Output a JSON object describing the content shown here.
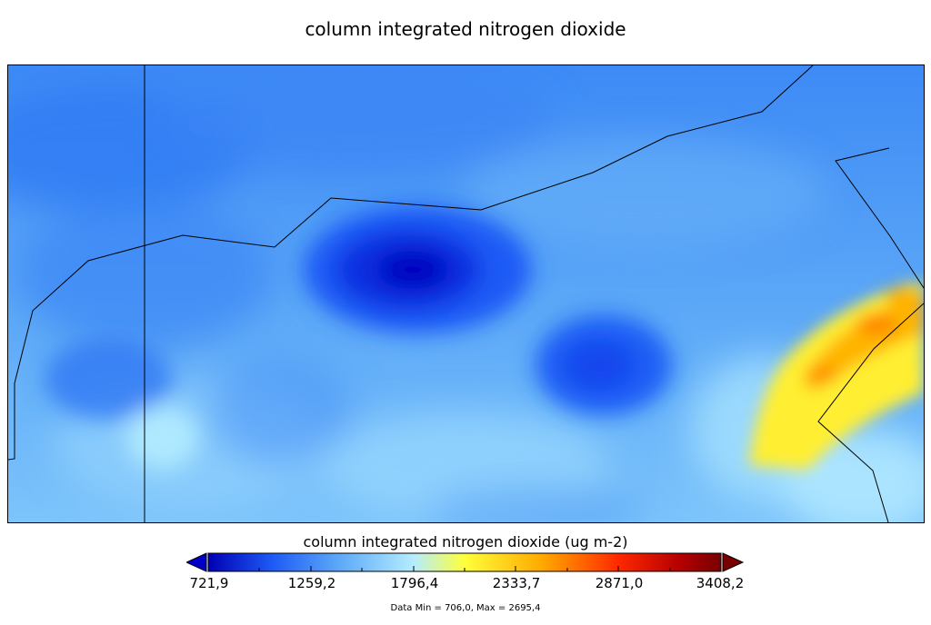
{
  "map": {
    "title": "column integrated nitrogen dioxide",
    "colorbar": {
      "label": "column integrated nitrogen dioxide (ug m-2)",
      "tick_labels": [
        "721,9",
        "1259,2",
        "1796,4",
        "2333,7",
        "2871,0",
        "3408,2"
      ],
      "min": 721.9,
      "max": 3408.2,
      "extend": "both",
      "colormap": [
        "#0000b4",
        "#1e5af5",
        "#5aa6f7",
        "#b4ecff",
        "#ffff3c",
        "#ffaa00",
        "#ff2800",
        "#b40000",
        "#780000"
      ]
    },
    "data_minmax": "Data Min = 706,0, Max = 2695,4"
  }
}
